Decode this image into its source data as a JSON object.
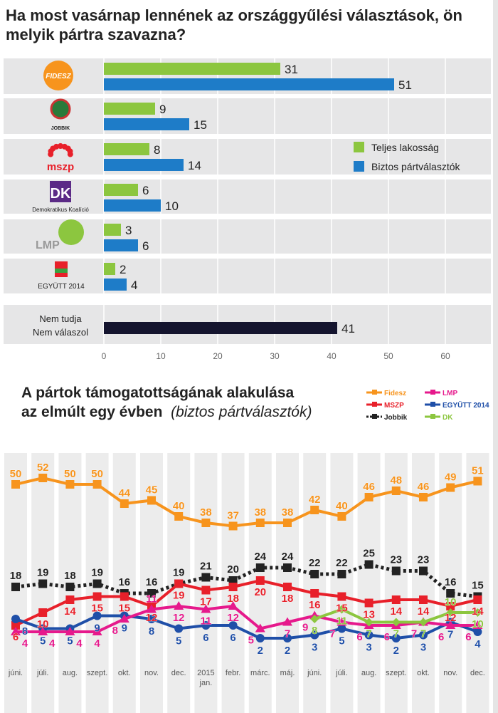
{
  "chart_data": [
    {
      "type": "bar",
      "title": "Ha most vasárnap lennének az országgyűlési választások, ön melyik pártra szavazna?",
      "categories": [
        "Fidesz",
        "Jobbik",
        "MSZP",
        "Demokratikus Koalíció",
        "LMP",
        "EGYÜTT 2014",
        "Nem tudja Nem válaszol"
      ],
      "category_labels": [
        "FIDESZ",
        "JOBBIK",
        "mszp",
        "Demokratikus Koalíció",
        "LMP",
        "EGYÜTT 2014",
        "Nem tudja|Nem válaszol"
      ],
      "series": [
        {
          "name": "Teljes lakosság",
          "color": "#8cc63f",
          "values": [
            31,
            9,
            8,
            6,
            3,
            2,
            null
          ]
        },
        {
          "name": "Biztos pártválasztók",
          "color": "#1e7cc8",
          "values": [
            51,
            15,
            14,
            10,
            6,
            4,
            null
          ]
        },
        {
          "name": "",
          "color": "#14142e",
          "values": [
            null,
            null,
            null,
            null,
            null,
            null,
            41
          ]
        }
      ],
      "xlim": [
        0,
        65
      ],
      "ticks": [
        0,
        10,
        20,
        30,
        40,
        50,
        60
      ],
      "legend": "right"
    },
    {
      "type": "line",
      "title": "A pártok támogatottságának alakulása",
      "title_line2": "az elmúlt egy évben",
      "subtitle": "(biztos pártválasztók)",
      "categories": [
        "júni.",
        "júli.",
        "aug.",
        "szept.",
        "okt.",
        "nov.",
        "dec.",
        "2015|jan.",
        "febr.",
        "márc.",
        "máj.",
        "júni.",
        "júli.",
        "aug.",
        "szept.",
        "okt.",
        "nov.",
        "dec."
      ],
      "series": [
        {
          "name": "Fidesz",
          "color": "#f7941d",
          "marker": "square",
          "values": [
            50,
            52,
            50,
            50,
            44,
            45,
            40,
            38,
            37,
            38,
            38,
            42,
            40,
            46,
            48,
            46,
            49,
            51
          ]
        },
        {
          "name": "MSZP",
          "color": "#e8202a",
          "marker": "square",
          "values": [
            6,
            10,
            14,
            15,
            15,
            12,
            19,
            17,
            18,
            20,
            18,
            16,
            15,
            13,
            14,
            14,
            12,
            14
          ]
        },
        {
          "name": "Jobbik",
          "color": "#222222",
          "marker": "square",
          "dashed": true,
          "values": [
            18,
            19,
            18,
            19,
            16,
            16,
            19,
            21,
            20,
            24,
            24,
            22,
            22,
            25,
            23,
            23,
            16,
            15
          ]
        },
        {
          "name": "LMP",
          "color": "#e6198c",
          "marker": "triangle",
          "values": [
            4,
            4,
            4,
            4,
            8,
            11,
            12,
            11,
            12,
            5,
            7,
            9,
            7,
            6,
            6,
            7,
            6,
            6
          ]
        },
        {
          "name": "EGYÜTT 2014",
          "color": "#1f4fa8",
          "marker": "circle",
          "values": [
            8,
            5,
            5,
            9,
            9,
            8,
            5,
            6,
            6,
            2,
            2,
            3,
            5,
            3,
            2,
            3,
            7,
            4
          ]
        },
        {
          "name": "DK",
          "color": "#8cc63f",
          "marker": "diamond",
          "values": [
            null,
            null,
            null,
            null,
            null,
            null,
            null,
            null,
            null,
            null,
            null,
            8,
            11,
            7,
            7,
            7,
            10,
            10
          ]
        }
      ],
      "ylim": [
        0,
        55
      ],
      "legend": "top-right"
    }
  ]
}
